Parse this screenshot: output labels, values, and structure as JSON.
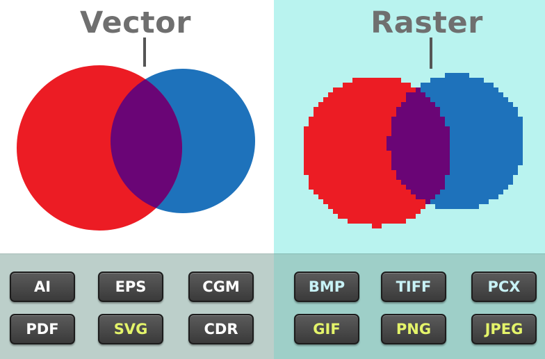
{
  "vector": {
    "title": "Vector",
    "formats": [
      "AI",
      "EPS",
      "CGM",
      "PDF",
      "SVG",
      "CDR"
    ],
    "highlighted": [
      "SVG"
    ]
  },
  "raster": {
    "title": "Raster",
    "formats": [
      "BMP",
      "TIFF",
      "PCX",
      "GIF",
      "PNG",
      "JPEG"
    ],
    "highlighted": [
      "GIF",
      "PNG",
      "JPEG"
    ]
  },
  "colors": {
    "red_circle": "#ec1c24",
    "blue_circle": "#1e72bb",
    "overlap": "#6a0576",
    "vector_bg": "#ffffff",
    "raster_bg": "#b9f3ef",
    "highlight_text": "#e4f46a"
  }
}
